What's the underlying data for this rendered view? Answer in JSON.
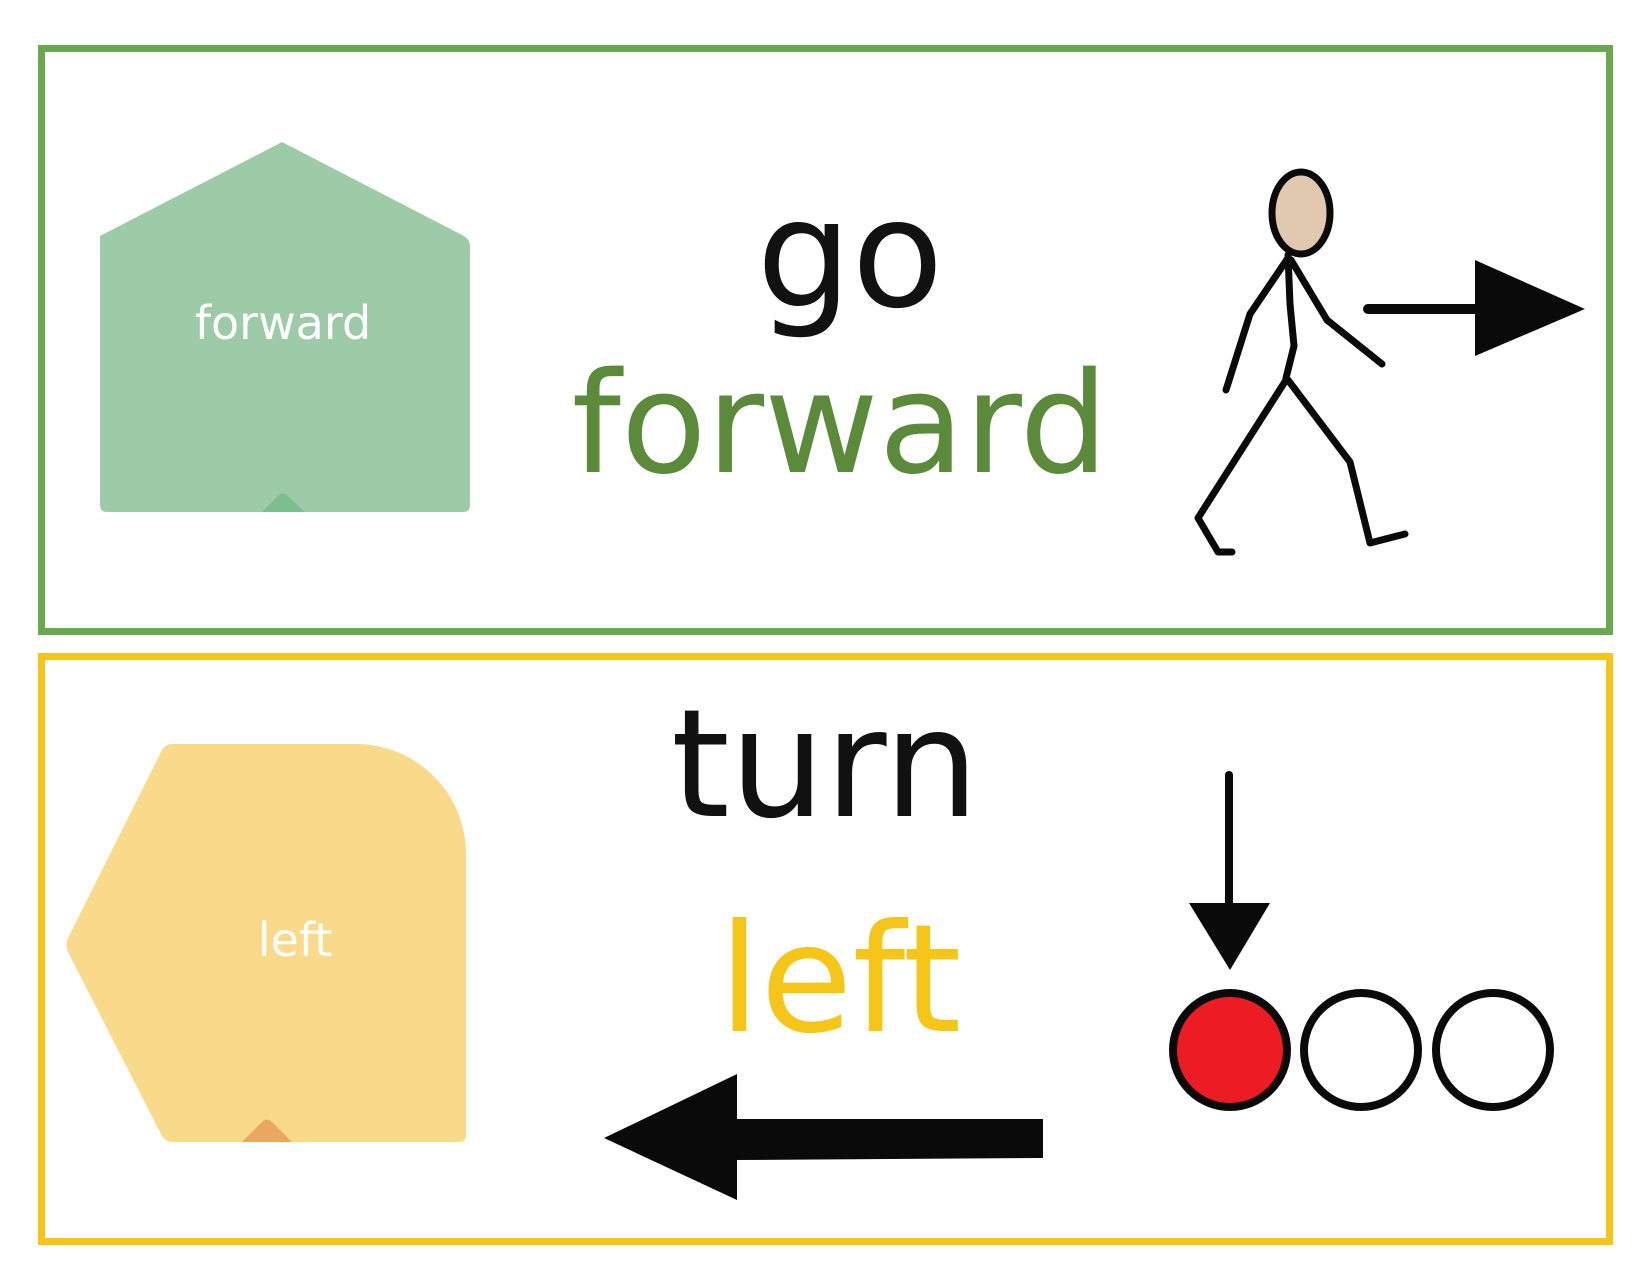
{
  "cards": [
    {
      "verb": "go",
      "direction": "forward",
      "block_label": "forward",
      "accent_color": "#6aa84f",
      "word_color": "#5a8a3a",
      "block_color": "#9dcba8",
      "icon": "walking-person-icon"
    },
    {
      "verb": "turn",
      "direction": "left",
      "block_label": "left",
      "accent_color": "#f5c518",
      "word_color": "#f5c518",
      "block_color": "#f8da8a",
      "icon": "turn-left-arrow-icon"
    }
  ],
  "colors": {
    "stroke": "#0a0a0a",
    "skin": "#e0c9ae",
    "red_dot": "#ed1c24",
    "white_dot": "#ffffff"
  },
  "sequence_dots": {
    "count": 3,
    "active_index": 0
  }
}
